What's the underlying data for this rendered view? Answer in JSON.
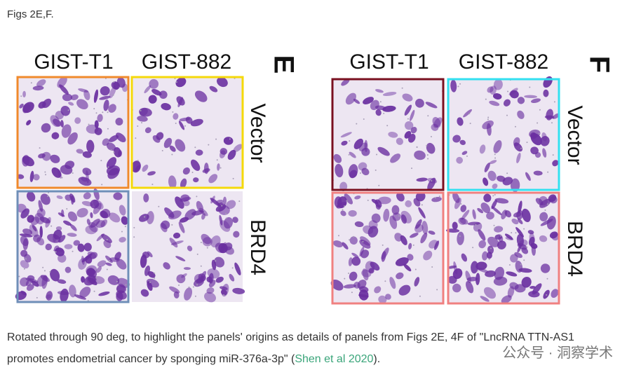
{
  "header": "Figs 2E,F.",
  "figures": [
    {
      "label": "E",
      "columns": [
        "GIST-T1",
        "GIST-882"
      ],
      "rows": [
        "Vector",
        "BRD4"
      ]
    },
    {
      "label": "F",
      "columns": [
        "GIST-T1",
        "GIST-882"
      ],
      "rows": [
        "Vector",
        "BRD4"
      ]
    }
  ],
  "caption": {
    "text": "Rotated through 90 deg, to highlight the panels' origins as details of panels from Figs 2E, 4F of \"LncRNA TTN-AS1 promotes endometrial cancer by sponging miR-376a-3p\" (",
    "link": "Shen et al 2020",
    "end": ")."
  },
  "watermark": "公众号 · 洞察学术"
}
